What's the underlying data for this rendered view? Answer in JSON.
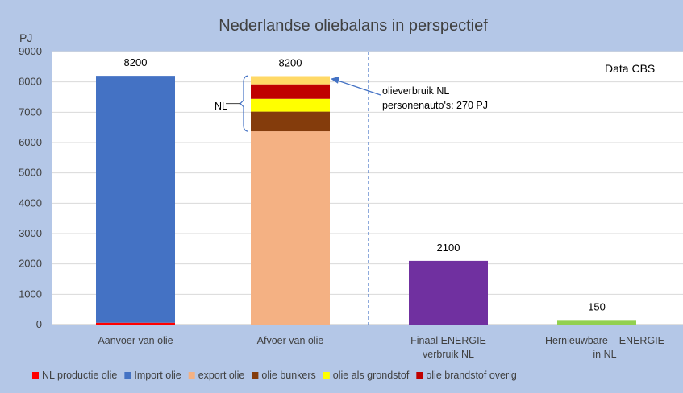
{
  "chart_data": {
    "type": "bar",
    "title": "Nederlandse oliebalans in perspectief",
    "ylabel": "PJ",
    "ylim": [
      0,
      9000
    ],
    "yticks": [
      "0",
      "1000",
      "2000",
      "3000",
      "4000",
      "5000",
      "6000",
      "7000",
      "8000",
      "9000"
    ],
    "grid": true,
    "legend_position": "bottom",
    "categories": [
      [
        "Aanvoer van olie"
      ],
      [
        "Afvoer van olie"
      ],
      [
        "Finaal ENERGIE",
        "verbruik NL"
      ],
      [
        "Hernieuwbare    ENERGIE",
        "in NL"
      ]
    ],
    "stacks": [
      [
        {
          "series": "NL productie olie",
          "value": 60
        },
        {
          "series": "Import olie",
          "value": 8140
        }
      ],
      [
        {
          "series": "export olie",
          "value": 6370
        },
        {
          "series": "olie bunkers",
          "value": 650
        },
        {
          "series": "olie als grondstof",
          "value": 420
        },
        {
          "series": "olie brandstof overig",
          "value": 480
        },
        {
          "series": "olieverbruik NL personenauto's",
          "value": 270
        }
      ],
      [
        {
          "series": "Finaal ENERGIE verbruik NL",
          "value": 2100
        }
      ],
      [
        {
          "series": "Hernieuwbare ENERGIE in NL",
          "value": 150
        }
      ]
    ],
    "totals": [
      "8200",
      "8200",
      "2100",
      "150"
    ],
    "series_colors": {
      "NL productie olie": "#ff0000",
      "Import olie": "#4472c4",
      "export olie": "#f4b183",
      "olie bunkers": "#843c0c",
      "olie als grondstof": "#ffff00",
      "olie brandstof overig": "#c00000",
      "olieverbruik NL personenauto's": "#ffd966",
      "Finaal ENERGIE verbruik NL": "#7030a0",
      "Hernieuwbare ENERGIE in NL": "#92d050"
    },
    "legend": [
      {
        "label": "NL productie olie",
        "color": "#ff0000"
      },
      {
        "label": "Import olie",
        "color": "#4472c4"
      },
      {
        "label": "export olie",
        "color": "#f4b183"
      },
      {
        "label": "olie bunkers",
        "color": "#843c0c"
      },
      {
        "label": "olie als grondstof",
        "color": "#ffff00"
      },
      {
        "label": "olie brandstof overig",
        "color": "#c00000"
      }
    ],
    "annotations": {
      "source": "Data CBS",
      "bracket_label": "NL",
      "callout_lines": [
        "olieverbruik NL",
        "personenauto's: 270 PJ"
      ]
    }
  }
}
